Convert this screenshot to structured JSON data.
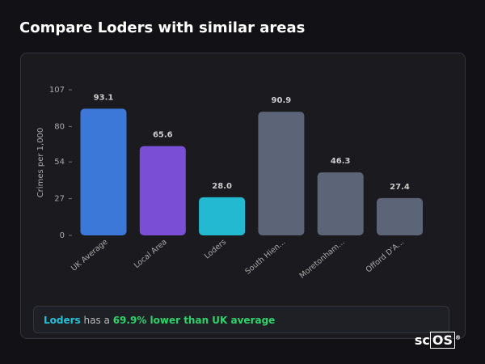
{
  "title": "Compare Loders with similar areas",
  "chart_data": {
    "type": "bar",
    "ylabel": "Crimes per 1,000",
    "categories": [
      "UK Average",
      "Local Area",
      "Loders",
      "South Hien...",
      "Moretonham...",
      "Offord D'A..."
    ],
    "values": [
      93.1,
      65.6,
      28,
      90.9,
      46.3,
      27.4
    ],
    "value_labels": [
      "93.1",
      "65.6",
      "28.0",
      "90.9",
      "46.3",
      "27.4"
    ],
    "colors": [
      "#3b78d8",
      "#7a4fd5",
      "#22b9d1",
      "#5b6577",
      "#5b6577",
      "#5b6577"
    ],
    "ylim": [
      0,
      107
    ],
    "yticks": [
      0,
      27,
      54,
      80,
      107
    ]
  },
  "summary": {
    "area": "Loders",
    "text": " has a ",
    "highlight": "69.9% lower than UK average"
  },
  "logo": {
    "left": "sc",
    "right": "OS",
    "mark": "®"
  }
}
